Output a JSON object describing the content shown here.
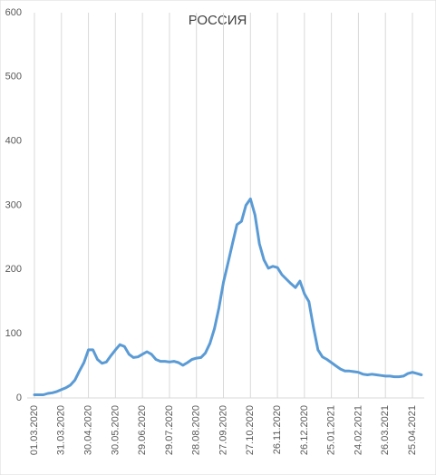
{
  "chart_data": {
    "type": "line",
    "title": "РОССИЯ",
    "categories": [
      "01.03.2020",
      null,
      null,
      null,
      null,
      null,
      "31.03.2020",
      null,
      null,
      null,
      null,
      null,
      "30.04.2020",
      null,
      null,
      null,
      null,
      null,
      "30.05.2020",
      null,
      null,
      null,
      null,
      null,
      "29.06.2020",
      null,
      null,
      null,
      null,
      null,
      "29.07.2020",
      null,
      null,
      null,
      null,
      null,
      "28.08.2020",
      null,
      null,
      null,
      null,
      null,
      "27.09.2020",
      null,
      null,
      null,
      null,
      null,
      "27.10.2020",
      null,
      null,
      null,
      null,
      null,
      "26.11.2020",
      null,
      null,
      null,
      null,
      null,
      "26.12.2020",
      null,
      null,
      null,
      null,
      null,
      "25.01.2021",
      null,
      null,
      null,
      null,
      null,
      "24.02.2021",
      null,
      null,
      null,
      null,
      null,
      "26.03.2021",
      null,
      null,
      null,
      null,
      null,
      "25.04.2021",
      null,
      null
    ],
    "values": [
      5,
      5,
      5,
      7,
      8,
      10,
      13,
      16,
      20,
      28,
      42,
      55,
      75,
      75,
      60,
      54,
      56,
      66,
      75,
      83,
      80,
      68,
      63,
      64,
      68,
      72,
      68,
      60,
      57,
      57,
      56,
      57,
      55,
      51,
      55,
      60,
      62,
      63,
      70,
      85,
      108,
      140,
      180,
      210,
      240,
      270,
      275,
      300,
      310,
      285,
      240,
      215,
      202,
      205,
      203,
      192,
      185,
      178,
      172,
      182,
      162,
      150,
      110,
      75,
      64,
      60,
      55,
      50,
      45,
      42,
      42,
      41,
      40,
      37,
      36,
      37,
      36,
      35,
      34,
      34,
      33,
      33,
      34,
      38,
      40,
      38,
      36
    ],
    "color": "#5b9bd5",
    "ylim": [
      0,
      600
    ],
    "yticks": [
      0,
      100,
      200,
      300,
      400,
      500,
      600
    ],
    "grid": true
  }
}
